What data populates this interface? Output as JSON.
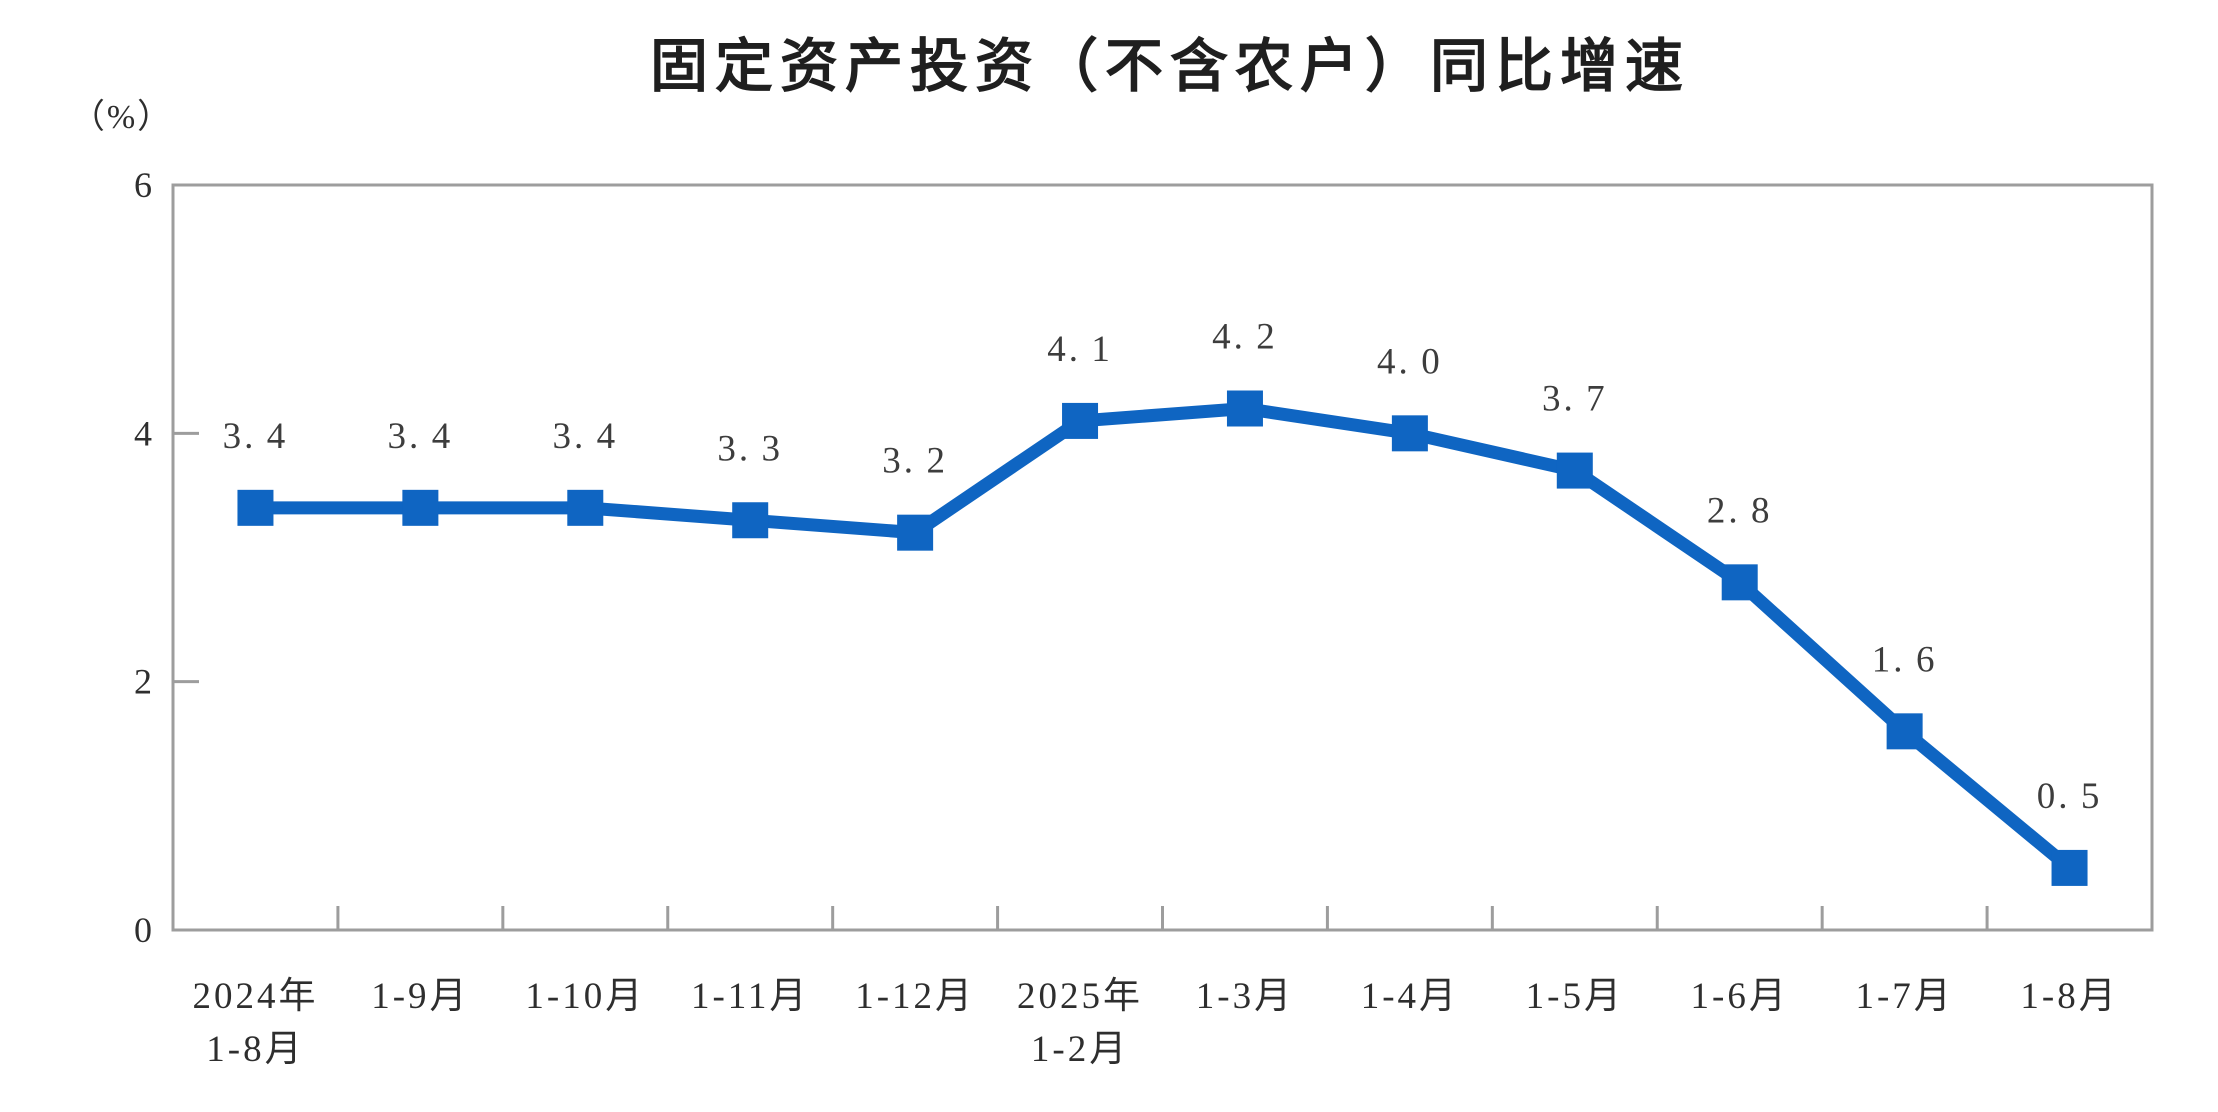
{
  "page": {
    "background_color": "#ffffff"
  },
  "chart_data": {
    "type": "line",
    "title": "固定资产投资（不含农户）同比增速",
    "unit_label": "（%）",
    "xlabel": "",
    "ylabel": "（%）",
    "categories": [
      [
        "2024年",
        "1-8月"
      ],
      [
        "1-9月"
      ],
      [
        "1-10月"
      ],
      [
        "1-11月"
      ],
      [
        "1-12月"
      ],
      [
        "2025年",
        "1-2月"
      ],
      [
        "1-3月"
      ],
      [
        "1-4月"
      ],
      [
        "1-5月"
      ],
      [
        "1-6月"
      ],
      [
        "1-7月"
      ],
      [
        "1-8月"
      ]
    ],
    "series": [
      {
        "name": "固定资产投资（不含农户）同比增速",
        "values": [
          3.4,
          3.4,
          3.4,
          3.3,
          3.2,
          4.1,
          4.2,
          4.0,
          3.7,
          2.8,
          1.6,
          0.5
        ],
        "data_labels": [
          "3.4",
          "3.4",
          "3.4",
          "3.3",
          "3.2",
          "4.1",
          "4.2",
          "4.0",
          "3.7",
          "2.8",
          "1.6",
          "0.5"
        ]
      }
    ],
    "ylim": [
      0,
      6
    ],
    "yticks": [
      0,
      2,
      4,
      6
    ],
    "grid": false,
    "legend_position": "none",
    "marker": "square",
    "colors": {
      "series": "#0F65C2",
      "axis": "#9d9d9d",
      "data_label": "#3d3d3d",
      "tick_label": "#2e2e2e",
      "title": "#1f1f1f"
    }
  }
}
